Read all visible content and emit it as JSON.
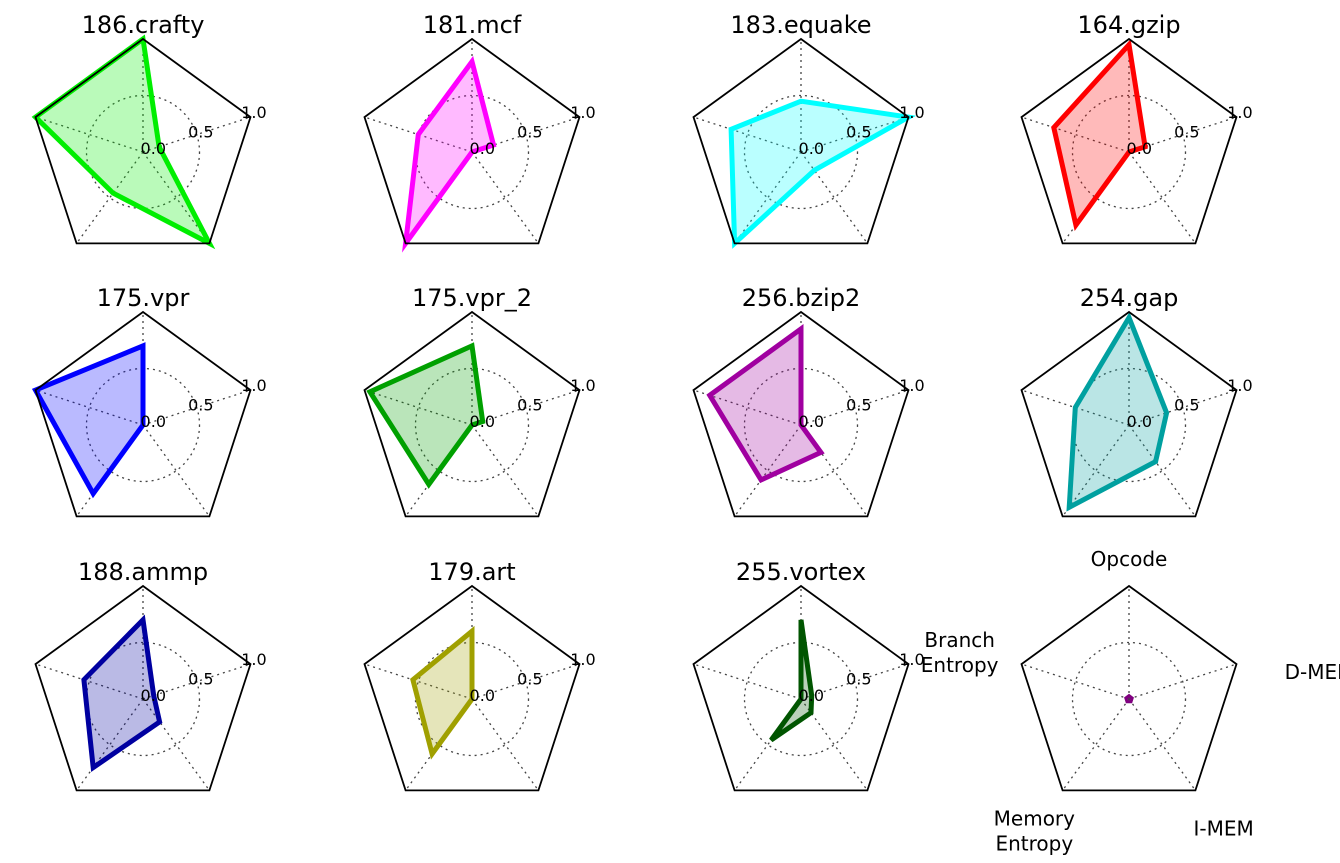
{
  "chart_data": {
    "type": "radar",
    "axes": [
      "Opcode",
      "D-MEM",
      "I-MEM",
      "Memory Entropy",
      "Branch Entropy"
    ],
    "axis_label_lines": [
      [
        "Opcode"
      ],
      [
        "D-MEM"
      ],
      [
        "I-MEM"
      ],
      [
        "Memory",
        "Entropy"
      ],
      [
        "Branch",
        "Entropy"
      ]
    ],
    "rlim": [
      0,
      1.0
    ],
    "rings": [
      0.5,
      1.0
    ],
    "tick_labels": [
      "0.0",
      "0.5",
      "1.0"
    ],
    "grid": true,
    "charts": [
      {
        "title": "186.crafty",
        "color": "#00ee00",
        "values": [
          1.0,
          0.15,
          1.0,
          0.45,
          1.0
        ]
      },
      {
        "title": "181.mcf",
        "color": "#ff00ff",
        "values": [
          0.8,
          0.2,
          0.0,
          1.0,
          0.5
        ]
      },
      {
        "title": "183.equake",
        "color": "#00ffff",
        "values": [
          0.45,
          1.0,
          0.2,
          1.0,
          0.65
        ]
      },
      {
        "title": "164.gzip",
        "color": "#ff0000",
        "values": [
          0.95,
          0.15,
          0.0,
          0.8,
          0.7
        ]
      },
      {
        "title": "175.vpr",
        "color": "#0000ff",
        "values": [
          0.7,
          0.0,
          0.0,
          0.75,
          1.0
        ]
      },
      {
        "title": "175.vpr_2",
        "color": "#00a000",
        "values": [
          0.7,
          0.1,
          0.0,
          0.65,
          0.95
        ]
      },
      {
        "title": "256.bzip2",
        "color": "#a000a0",
        "values": [
          0.85,
          0.0,
          0.3,
          0.6,
          0.85
        ]
      },
      {
        "title": "254.gap",
        "color": "#00a0a0",
        "values": [
          0.95,
          0.35,
          0.4,
          0.9,
          0.5
        ]
      },
      {
        "title": "188.ammp",
        "color": "#0000a0",
        "values": [
          0.7,
          0.1,
          0.25,
          0.75,
          0.55
        ]
      },
      {
        "title": "179.art",
        "color": "#a0a000",
        "values": [
          0.6,
          0.0,
          0.0,
          0.6,
          0.55
        ]
      },
      {
        "title": "255.vortex",
        "color": "#005500",
        "values": [
          0.7,
          0.1,
          0.15,
          0.45,
          0.0
        ]
      },
      {
        "title": "",
        "color": "#800080",
        "values": [
          0.03,
          0.03,
          0.03,
          0.03,
          0.03
        ]
      }
    ]
  }
}
